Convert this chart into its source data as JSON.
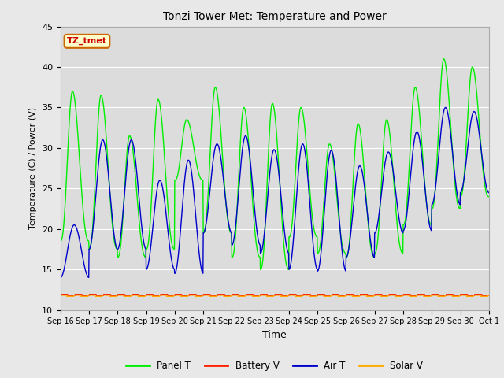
{
  "title": "Tonzi Tower Met: Temperature and Power",
  "xlabel": "Time",
  "ylabel": "Temperature (C) / Power (V)",
  "ylim": [
    10,
    45
  ],
  "n_days": 15,
  "figsize": [
    6.4,
    4.8
  ],
  "dpi": 100,
  "fig_bg": "#e8e8e8",
  "plot_bg": "#dcdcdc",
  "annotation_text": "TZ_tmet",
  "annotation_bg": "#ffffcc",
  "annotation_border": "#cc6600",
  "annotation_text_color": "#cc0000",
  "legend_entries": [
    "Panel T",
    "Battery V",
    "Air T",
    "Solar V"
  ],
  "legend_colors": [
    "#00ee00",
    "#ff2200",
    "#0000cc",
    "#ffaa00"
  ],
  "x_tick_labels": [
    "Sep 16",
    "Sep 17",
    "Sep 18",
    "Sep 19",
    "Sep 20",
    "Sep 21",
    "Sep 22",
    "Sep 23",
    "Sep 24",
    "Sep 25",
    "Sep 26",
    "Sep 27",
    "Sep 28",
    "Sep 29",
    "Sep 30",
    "Oct 1"
  ],
  "panel_T_peaks": [
    37.0,
    36.5,
    31.5,
    36.0,
    33.5,
    37.5,
    35.0,
    35.5,
    35.0,
    30.5,
    33.0,
    33.5,
    37.5,
    41.0,
    40.0
  ],
  "panel_T_troughs": [
    18.5,
    17.5,
    16.5,
    17.5,
    26.0,
    19.5,
    16.5,
    15.0,
    19.0,
    17.0,
    16.5,
    17.0,
    20.5,
    22.5,
    24.0
  ],
  "air_T_peaks": [
    20.5,
    31.0,
    31.0,
    26.0,
    28.5,
    30.5,
    31.5,
    29.8,
    30.5,
    29.7,
    27.8,
    29.5,
    32.0,
    35.0,
    34.5
  ],
  "air_T_troughs": [
    14.0,
    17.5,
    17.5,
    15.0,
    14.5,
    19.5,
    18.0,
    17.0,
    15.0,
    14.8,
    16.5,
    19.5,
    19.8,
    23.0,
    24.5
  ],
  "battery_V_base": 11.85,
  "solar_V_base": 11.75,
  "pts_per_day": 96
}
